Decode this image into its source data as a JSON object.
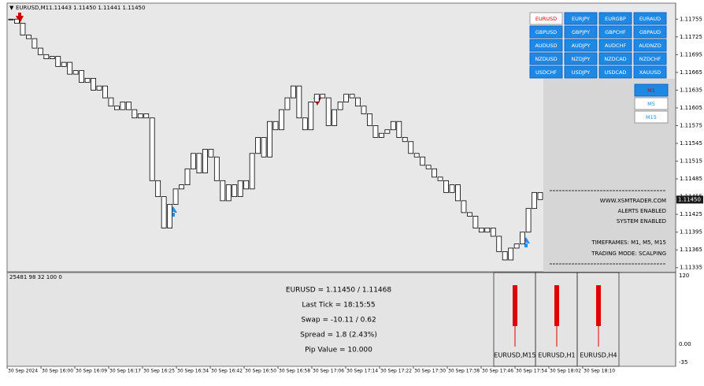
{
  "header": {
    "symbol": "EURUSD,M1",
    "ohlc": "1.11443 1.11450 1.11441 1.11450"
  },
  "chart_data": {
    "type": "candlestick",
    "values": [
      1.11755,
      1.11748,
      1.11728,
      1.11722,
      1.11706,
      1.11695,
      1.11688,
      1.11692,
      1.11675,
      1.11682,
      1.11662,
      1.11668,
      1.11648,
      1.11655,
      1.11635,
      1.11642,
      1.11622,
      1.11608,
      1.11602,
      1.11615,
      1.11602,
      1.11588,
      1.11595,
      1.11588,
      1.11482,
      1.11455,
      1.11402,
      1.11442,
      1.11468,
      1.11475,
      1.11502,
      1.11528,
      1.11495,
      1.11535,
      1.11522,
      1.11482,
      1.11448,
      1.11475,
      1.11455,
      1.11482,
      1.11468,
      1.11528,
      1.11555,
      1.11522,
      1.11582,
      1.11568,
      1.11602,
      1.11622,
      1.11642,
      1.11588,
      1.11568,
      1.11615,
      1.11628,
      1.11622,
      1.11575,
      1.11602,
      1.11615,
      1.11628,
      1.11622,
      1.11608,
      1.11595,
      1.11575,
      1.11555,
      1.11562,
      1.11568,
      1.11582,
      1.11555,
      1.11548,
      1.11528,
      1.11522,
      1.11508,
      1.11502,
      1.11488,
      1.11482,
      1.11462,
      1.11475,
      1.11448,
      1.11428,
      1.11422,
      1.11402,
      1.11395,
      1.11402,
      1.11388,
      1.11362,
      1.11348,
      1.11368,
      1.11375,
      1.11395,
      1.11435,
      1.11462,
      1.1145
    ],
    "color": "#000000",
    "ylim": [
      1.11328,
      1.11782
    ],
    "yticks": [
      1.11755,
      1.11725,
      1.11695,
      1.11665,
      1.11635,
      1.11605,
      1.11575,
      1.11545,
      1.11515,
      1.11485,
      1.11455,
      1.11425,
      1.11395,
      1.11365,
      1.11335
    ],
    "current_price": {
      "value": 1.1145,
      "label": "1.11450"
    }
  },
  "symbol_buttons": [
    [
      "EURUSD",
      "EURJPY",
      "EURGBP",
      "EURAUD"
    ],
    [
      "GBPUSD",
      "GBPJPY",
      "GBPCHF",
      "GBPAUD"
    ],
    [
      "AUDUSD",
      "AUDJPY",
      "AUDCHF",
      "AUDNZD"
    ],
    [
      "NZDUSD",
      "NZDJPY",
      "NZDCAD",
      "NZDCHF"
    ],
    [
      "USDCHF",
      "USDJPY",
      "USDCAD",
      "XAUUSD"
    ]
  ],
  "timeframe_buttons": [
    "M1",
    "M5",
    "M15"
  ],
  "info_panel": {
    "site": "WWW.XSMTRADER.COM",
    "alerts": "ALERTS ENABLED",
    "system": "SYSTEM ENABLED",
    "timeframes": "TIMEFRAMES: M1, M5, M15",
    "mode": "TRADING MODE: SCALPING"
  },
  "indicator_window": {
    "label": "25481 98 32 100 0",
    "info": [
      "EURUSD = 1.11450 / 1.11468",
      "Last Tick = 18:15:55",
      "Swap = -10.11 / 0.62",
      "Spread = 1.8  (2.43%)",
      "Pip Value = 10.000"
    ],
    "panels": [
      "EURUSD,M15",
      "EURUSD,H1",
      "EURUSD,H4"
    ],
    "axis_labels": [
      "120",
      "0.00",
      "-35"
    ]
  },
  "time_axis": [
    "30 Sep 2024",
    "30 Sep 16:00",
    "30 Sep 16:09",
    "30 Sep 16:17",
    "30 Sep 16:25",
    "30 Sep 16:34",
    "30 Sep 16:42",
    "30 Sep 16:50",
    "30 Sep 16:58",
    "30 Sep 17:06",
    "30 Sep 17:14",
    "30 Sep 17:22",
    "30 Sep 17:30",
    "30 Sep 17:38",
    "30 Sep 17:46",
    "30 Sep 17:54",
    "30 Sep 18:02",
    "30 Sep 18:10"
  ]
}
